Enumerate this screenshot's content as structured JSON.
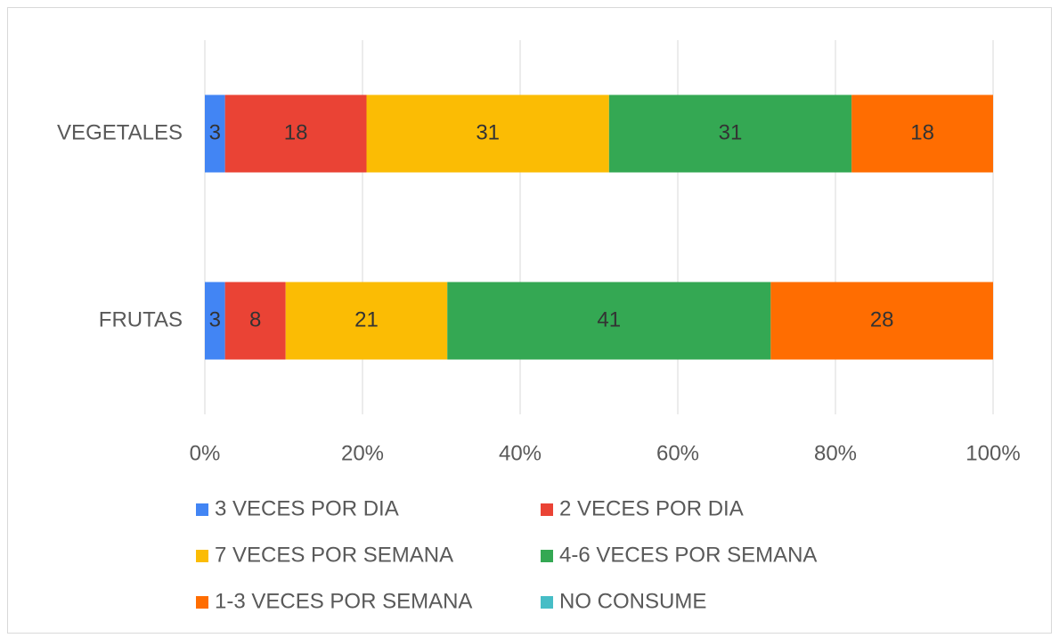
{
  "chart_data": {
    "type": "stacked_barh",
    "categories": [
      "VEGETALES",
      "FRUTAS"
    ],
    "series": [
      {
        "name": "3 VECES POR DIA",
        "color": "#4285f4",
        "values": [
          2.56,
          2.56
        ],
        "value_labels": [
          "3",
          "3"
        ]
      },
      {
        "name": "2 VECES POR DIA",
        "color": "#ea4335",
        "values": [
          17.95,
          7.69
        ],
        "value_labels": [
          "18",
          "8"
        ]
      },
      {
        "name": "7 VECES POR SEMANA",
        "color": "#fbbc04",
        "values": [
          30.77,
          20.51
        ],
        "value_labels": [
          "31",
          "21"
        ]
      },
      {
        "name": "4-6 VECES POR SEMANA",
        "color": "#34a853",
        "values": [
          30.77,
          41.03
        ],
        "value_labels": [
          "31",
          "41"
        ]
      },
      {
        "name": "1-3 VECES POR SEMANA",
        "color": "#ff6d01",
        "values": [
          17.95,
          28.21
        ],
        "value_labels": [
          "18",
          "28"
        ]
      },
      {
        "name": "NO CONSUME",
        "color": "#46bdc6",
        "values": [
          0,
          0
        ],
        "value_labels": [
          null,
          null
        ]
      }
    ],
    "xlim": [
      0,
      100
    ],
    "xticks": [
      {
        "value": 0,
        "label": "0%"
      },
      {
        "value": 20,
        "label": "20%"
      },
      {
        "value": 40,
        "label": "40%"
      },
      {
        "value": 60,
        "label": "60%"
      },
      {
        "value": 80,
        "label": "80%"
      },
      {
        "value": 100,
        "label": "100%"
      }
    ],
    "grid": true
  }
}
